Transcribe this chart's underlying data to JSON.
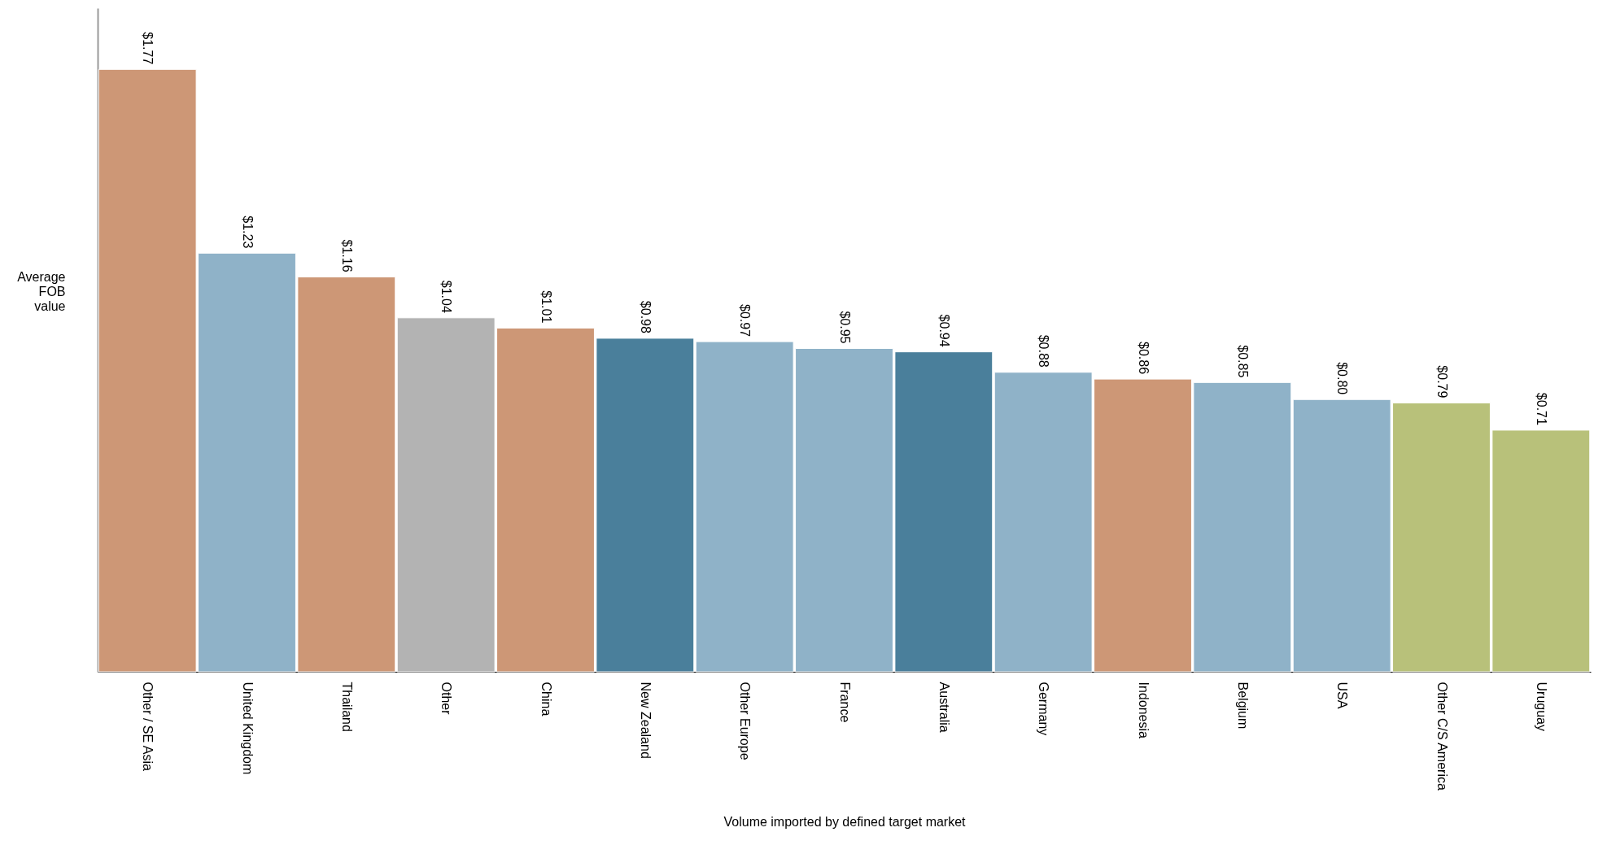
{
  "chart_data": {
    "type": "bar",
    "ylabel": "Average FOB value",
    "xlabel": "Volume imported by defined target market",
    "categories": [
      "Other / SE Asia",
      "United Kingdom",
      "Thailand",
      "Other",
      "China",
      "New Zealand",
      "Other Europe",
      "France",
      "Australia",
      "Germany",
      "Indonesia",
      "Belgium",
      "USA",
      "Other C/S America",
      "Uruguay"
    ],
    "values": [
      1.77,
      1.23,
      1.16,
      1.04,
      1.01,
      0.98,
      0.97,
      0.95,
      0.94,
      0.88,
      0.86,
      0.85,
      0.8,
      0.79,
      0.71
    ],
    "value_labels": [
      "$1.77",
      "$1.23",
      "$1.16",
      "$1.04",
      "$1.01",
      "$0.98",
      "$0.97",
      "$0.95",
      "$0.94",
      "$0.88",
      "$0.86",
      "$0.85",
      "$0.80",
      "$0.79",
      "$0.71"
    ],
    "colors": [
      "#cd9776",
      "#8fb2c8",
      "#cd9776",
      "#b3b3b3",
      "#cd9776",
      "#4a7f9b",
      "#8fb2c8",
      "#8fb2c8",
      "#4a7f9b",
      "#8fb2c8",
      "#cd9776",
      "#8fb2c8",
      "#8fb2c8",
      "#b8c17a",
      "#b8c17a"
    ],
    "ylim": [
      0,
      1.95
    ],
    "tick_labels": "x",
    "grid": false,
    "legend": false
  }
}
